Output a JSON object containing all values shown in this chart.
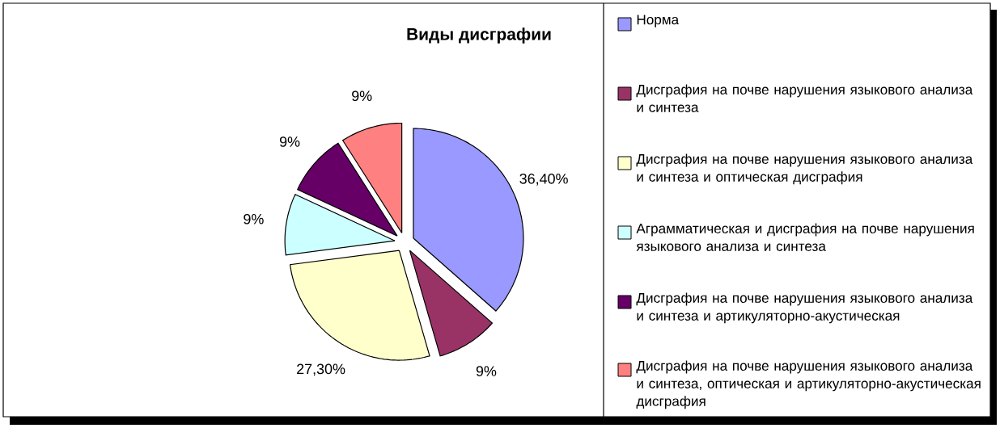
{
  "chart_data": {
    "type": "pie",
    "title": "Виды дисграфии",
    "categories": [
      "Норма",
      "Дисграфия на почве нарушения языкового анализа и синтеза",
      "Дисграфия на почве нарушения языкового анализа и синтеза и оптическая дисграфия",
      "Аграмматическая и дисграфия на почве нарушения языкового анализа и синтеза",
      "Дисграфия на почве нарушения языкового анализа и синтеза и артикуляторно-акустическая",
      "Дисграфия на почве нарушения языкового анализа и синтеза, оптическая и артикуляторно-акустическая дисграфия"
    ],
    "values": [
      36.4,
      9,
      27.3,
      9,
      9,
      9
    ],
    "value_labels": [
      "36,40%",
      "9%",
      "27,30%",
      "9%",
      "9%",
      "9%"
    ],
    "colors": [
      "#9999ff",
      "#993366",
      "#ffffcc",
      "#ccffff",
      "#660066",
      "#ff8080"
    ],
    "legend": "right"
  }
}
